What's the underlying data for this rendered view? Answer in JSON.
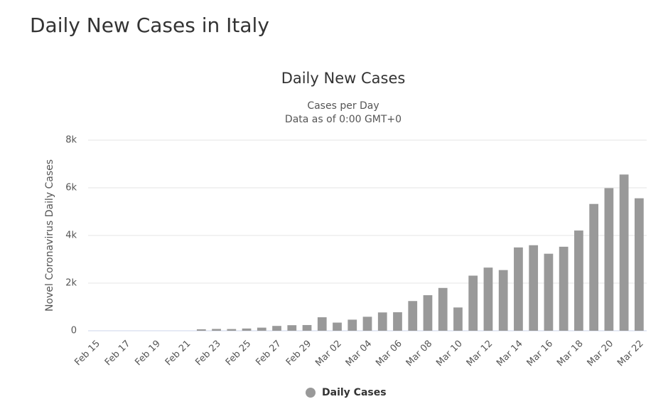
{
  "page_title": "Daily New Cases in Italy",
  "chart_data": {
    "type": "bar",
    "title": "Daily New Cases",
    "subtitle": "Cases per Day",
    "note": "Data as of 0:00 GMT+0",
    "y_label": "Novel Coronavirus Daily Cases",
    "categories": [
      "Feb 15",
      null,
      "Feb 17",
      null,
      "Feb 19",
      null,
      "Feb 21",
      null,
      "Feb 23",
      null,
      "Feb 25",
      null,
      "Feb 27",
      null,
      "Feb 29",
      null,
      "Mar 02",
      null,
      "Mar 04",
      null,
      "Mar 06",
      null,
      "Mar 08",
      null,
      "Mar 10",
      null,
      "Mar 12",
      null,
      "Mar 14",
      null,
      "Mar 16",
      null,
      "Mar 18",
      null,
      "Mar 20",
      null,
      "Mar 22"
    ],
    "series": [
      {
        "name": "Daily Cases",
        "color": "#999999",
        "values": [
          0,
          0,
          0,
          0,
          0,
          0,
          0,
          62,
          76,
          72,
          94,
          131,
          203,
          233,
          240,
          566,
          342,
          466,
          587,
          769,
          778,
          1247,
          1492,
          1797,
          977,
          2313,
          2651,
          2547,
          3497,
          3590,
          3233,
          3526,
          4207,
          5322,
          5986,
          6557,
          5560
        ]
      }
    ],
    "ylim": [
      0,
      8000
    ],
    "yticks": [
      0,
      {
        "value": 2000,
        "label": "2k"
      },
      {
        "value": 4000,
        "label": "4k"
      },
      {
        "value": 6000,
        "label": "6k"
      },
      {
        "value": 8000,
        "label": "8k"
      }
    ],
    "grid": true
  }
}
